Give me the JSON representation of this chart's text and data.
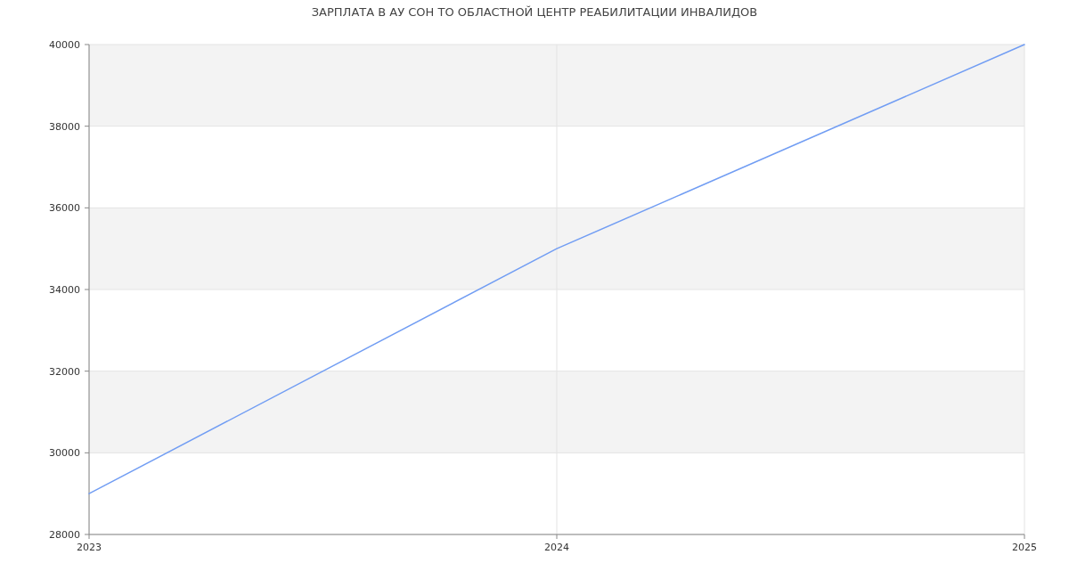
{
  "chart_data": {
    "type": "line",
    "title": "ЗАРПЛАТА В АУ СОН ТО ОБЛАСТНОЙ ЦЕНТР РЕАБИЛИТАЦИИ ИНВАЛИДОВ",
    "x": [
      2023,
      2024,
      2025
    ],
    "series": [
      {
        "color": "#719df3",
        "values": [
          29000,
          35000,
          40000
        ]
      }
    ],
    "xlim": [
      2023,
      2025
    ],
    "xticks": [
      2023,
      2024,
      2025
    ],
    "ylim": [
      28000,
      40000
    ],
    "yticks": [
      28000,
      30000,
      32000,
      34000,
      36000,
      38000,
      40000
    ],
    "bands": [
      {
        "axis": "y",
        "from": 30000,
        "to": 32000,
        "color": "#f3f3f3"
      },
      {
        "axis": "y",
        "from": 34000,
        "to": 36000,
        "color": "#f3f3f3"
      },
      {
        "axis": "y",
        "from": 38000,
        "to": 40000,
        "color": "#f3f3f3"
      }
    ],
    "grid": true,
    "marker": "none",
    "line_style": "solid"
  }
}
